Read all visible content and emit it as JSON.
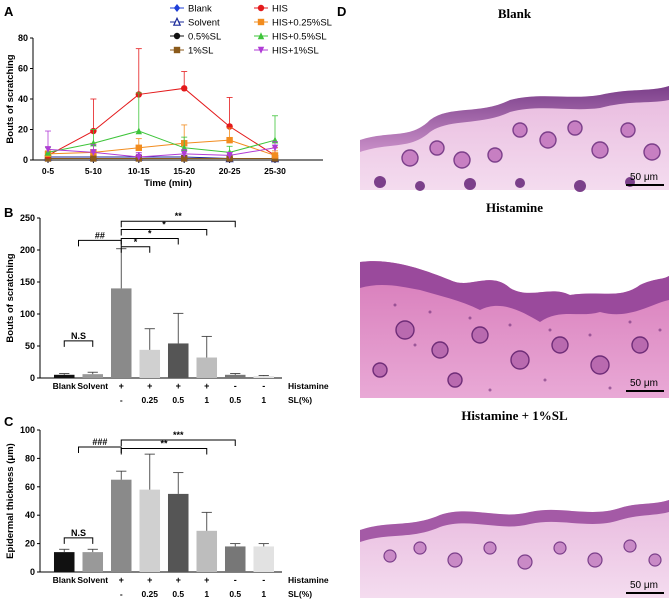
{
  "panel_labels": {
    "A": "A",
    "B": "B",
    "C": "C",
    "D": "D"
  },
  "colors": {
    "blank": "#1f3fd8",
    "solvent": "#1a2a9a",
    "sl05": "#111111",
    "sl1": "#8b5a1b",
    "his": "#e41a1c",
    "his025": "#f28c1e",
    "his05": "#3ec43a",
    "his1": "#b03cd6",
    "bar_black": "#111111",
    "bar_light": "#cfcfcf",
    "bar_mid": "#8a8a8a",
    "bar_dark": "#555555",
    "bar_lighter": "#d6d6d6",
    "bar_gray": "#999999",
    "bar_pale": "#e4e4e4"
  },
  "chart_data": [
    {
      "id": "A",
      "type": "line",
      "xlabel": "Time (min)",
      "ylabel": "Bouts of scratching",
      "categories": [
        "0-5",
        "5-10",
        "10-15",
        "15-20",
        "20-25",
        "25-30"
      ],
      "ylim": [
        0,
        80
      ],
      "yticks": [
        "0",
        "20",
        "40",
        "60",
        "80"
      ],
      "series": [
        {
          "name": "Blank",
          "marker": "diamond",
          "color": "#1f3fd8",
          "values": [
            1,
            1,
            1,
            1,
            1,
            1
          ],
          "err": [
            0.5,
            0.5,
            0.5,
            0.5,
            0.5,
            0.5
          ]
        },
        {
          "name": "Solvent",
          "marker": "triangle-open",
          "color": "#1a2a9a",
          "values": [
            2,
            2,
            2,
            2,
            1,
            1
          ],
          "err": [
            1,
            1,
            1,
            1,
            1,
            1
          ]
        },
        {
          "name": "0.5%SL",
          "marker": "circle",
          "color": "#111111",
          "values": [
            1,
            1,
            1,
            1,
            1,
            1
          ],
          "err": [
            0.5,
            0.5,
            0.5,
            0.5,
            0.5,
            0.5
          ]
        },
        {
          "name": "1%SL",
          "marker": "square",
          "color": "#8b5a1b",
          "values": [
            1,
            1,
            1,
            1,
            1,
            1
          ],
          "err": [
            0.5,
            0.5,
            0.5,
            0.5,
            0.5,
            0.5
          ]
        },
        {
          "name": "HIS",
          "marker": "circle",
          "color": "#e41a1c",
          "values": [
            3,
            19,
            43,
            47,
            22,
            3
          ],
          "err": [
            2,
            21,
            30,
            11,
            19,
            5
          ]
        },
        {
          "name": "HIS+0.25%SL",
          "marker": "square",
          "color": "#f28c1e",
          "values": [
            4,
            5,
            8,
            11,
            13,
            3
          ],
          "err": [
            2,
            6,
            6,
            12,
            8,
            3
          ]
        },
        {
          "name": "HIS+0.5%SL",
          "marker": "triangle",
          "color": "#3ec43a",
          "values": [
            5,
            11,
            19,
            8,
            5,
            13
          ],
          "err": [
            3,
            9,
            25,
            7,
            4,
            16
          ]
        },
        {
          "name": "HIS+1%SL",
          "marker": "triangle-down",
          "color": "#b03cd6",
          "values": [
            7,
            5,
            2,
            4,
            3,
            8
          ],
          "err": [
            12,
            5,
            3,
            3,
            2,
            4
          ]
        }
      ]
    },
    {
      "id": "B",
      "type": "bar",
      "ylabel": "Bouts of scratching",
      "categories": [
        "Blank",
        "Solvent",
        "HIS",
        "HIS+0.25%SL",
        "HIS+0.5%SL",
        "HIS+1%SL",
        "0.5%SL",
        "1%SL"
      ],
      "values": [
        5,
        6,
        140,
        44,
        54,
        32,
        5,
        3
      ],
      "err": [
        2,
        3,
        62,
        33,
        47,
        33,
        2,
        1
      ],
      "ylim": [
        0,
        250
      ],
      "yticks": [
        "0",
        "50",
        "100",
        "150",
        "200",
        "250"
      ],
      "xlabels": [
        "Blank",
        "Solvent",
        "",
        "",
        "",
        "",
        "",
        ""
      ],
      "histamine_row": [
        "",
        "",
        "+",
        "+",
        "+",
        "+",
        "-",
        "-"
      ],
      "sl_row": [
        "",
        "",
        "-",
        "0.25",
        "0.5",
        "1",
        "0.5",
        "1"
      ],
      "row_labels": {
        "histamine": "Histamine",
        "sl": "SL(%)"
      },
      "annotations": [
        {
          "from": 0,
          "to": 1,
          "level": 58,
          "text": "N.S"
        },
        {
          "from": 0.5,
          "to": 2,
          "level": 215,
          "text": "##"
        },
        {
          "from": 2,
          "to": 3,
          "level": 205,
          "text": "*"
        },
        {
          "from": 2,
          "to": 4,
          "level": 218,
          "text": "*"
        },
        {
          "from": 2,
          "to": 5,
          "level": 232,
          "text": "*"
        },
        {
          "from": 2,
          "to": 6,
          "level": 245,
          "text": "**"
        }
      ]
    },
    {
      "id": "C",
      "type": "bar",
      "ylabel": "Epidermal thickness (μm)",
      "categories": [
        "Blank",
        "Solvent",
        "HIS",
        "HIS+0.25%SL",
        "HIS+0.5%SL",
        "HIS+1%SL",
        "0.5%SL",
        "1%SL"
      ],
      "values": [
        14,
        14,
        65,
        58,
        55,
        29,
        18,
        18
      ],
      "err": [
        2,
        2,
        6,
        25,
        15,
        13,
        2,
        2
      ],
      "ylim": [
        0,
        100
      ],
      "yticks": [
        "0",
        "20",
        "40",
        "60",
        "80",
        "100"
      ],
      "xlabels": [
        "Blank",
        "Solvent",
        "",
        "",
        "",
        "",
        "",
        ""
      ],
      "histamine_row": [
        "",
        "",
        "+",
        "+",
        "+",
        "+",
        "-",
        "-"
      ],
      "sl_row": [
        "",
        "",
        "-",
        "0.25",
        "0.5",
        "1",
        "0.5",
        "1"
      ],
      "row_labels": {
        "histamine": "Histamine",
        "sl": "SL(%)"
      },
      "annotations": [
        {
          "from": 0,
          "to": 1,
          "level": 24,
          "text": "N.S"
        },
        {
          "from": 0.5,
          "to": 2,
          "level": 88,
          "text": "###"
        },
        {
          "from": 2,
          "to": 5,
          "level": 87,
          "text": "**"
        },
        {
          "from": 2,
          "to": 6,
          "level": 93,
          "text": "***"
        }
      ]
    }
  ],
  "histology": {
    "blank_title": "Blank",
    "histamine_title": "Histamine",
    "combo_title": "Histamine + 1%SL",
    "scale_label": "50 μm"
  }
}
